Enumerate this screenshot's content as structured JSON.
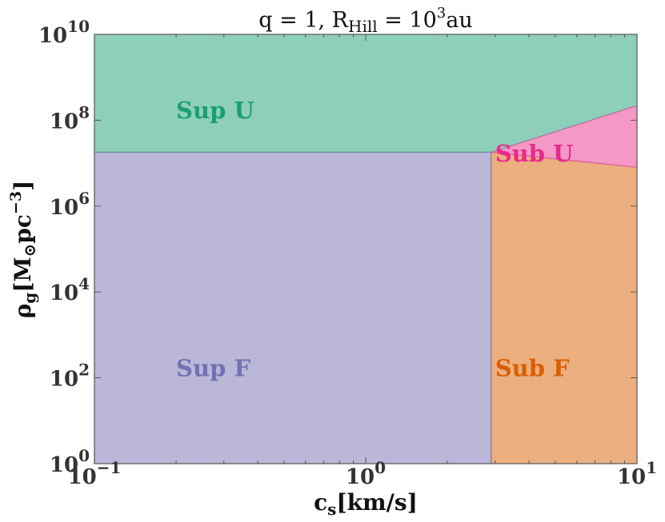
{
  "chart_data": {
    "type": "area",
    "title_parts": {
      "q_label": "q = 1, R",
      "hill_sub": "Hill",
      "eq": " = 10",
      "eq_exp": "3",
      "unit": "au"
    },
    "xlabel": {
      "base": "c",
      "sub": "s",
      "rest": "[km/s]"
    },
    "ylabel": {
      "base": "ρ",
      "sub": "g",
      "rest1": "[M",
      "odot": "⊙",
      "rest2": "pc",
      "exp": "−3",
      "rest3": "]"
    },
    "xscale": "log",
    "yscale": "log",
    "xlim": [
      0.1,
      10
    ],
    "ylim": [
      1,
      10000000000
    ],
    "x_ticks": [
      {
        "base": "10",
        "exp": "−1"
      },
      {
        "base": "10",
        "exp": "0"
      },
      {
        "base": "10",
        "exp": "1"
      }
    ],
    "y_ticks": [
      {
        "base": "10",
        "exp": "0"
      },
      {
        "base": "10",
        "exp": "2"
      },
      {
        "base": "10",
        "exp": "4"
      },
      {
        "base": "10",
        "exp": "6"
      },
      {
        "base": "10",
        "exp": "8"
      },
      {
        "base": "10",
        "exp": "10"
      }
    ],
    "boundaries": {
      "cs_critical": 2.9,
      "rho_critical": 18000000,
      "upper_line_end": [
        10,
        220000000
      ],
      "lower_line_end": [
        10,
        8000000
      ]
    },
    "regions": [
      {
        "label": "Sup U",
        "color": "#8ecfb9",
        "text_color": "#1b9e77"
      },
      {
        "label": "Sup F",
        "color": "#bab7d9",
        "text_color": "#7570b3"
      },
      {
        "label": "Sub U",
        "color": "#f498c6",
        "text_color": "#e7298a"
      },
      {
        "label": "Sub F",
        "color": "#ecaf7f",
        "text_color": "#d95f02"
      }
    ]
  }
}
